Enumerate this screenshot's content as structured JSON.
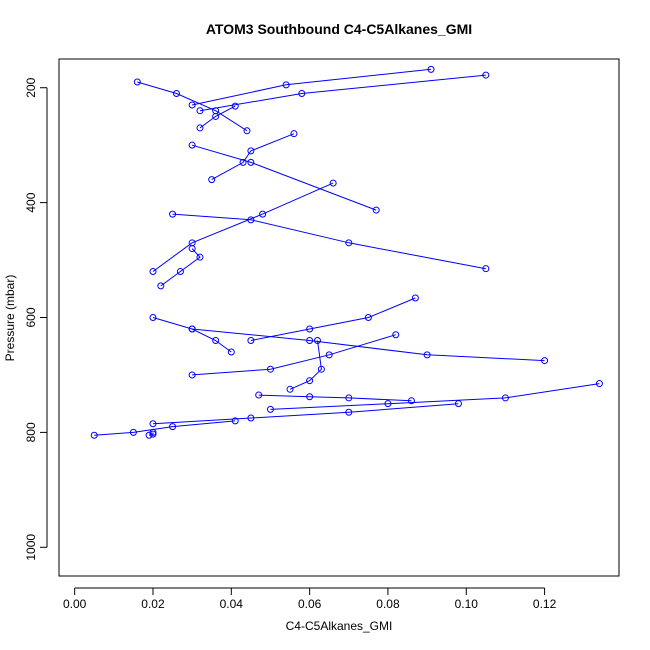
{
  "chart_data": {
    "type": "line",
    "title": "ATOM3 Southbound C4-C5Alkanes_GMI",
    "xlabel": "C4-C5Alkanes_GMI",
    "ylabel": "Pressure (mbar)",
    "xlim": [
      -0.004,
      0.139
    ],
    "ylim": [
      1050,
      150
    ],
    "y_reversed": true,
    "x_ticks": [
      "0.00",
      "0.02",
      "0.04",
      "0.06",
      "0.08",
      "0.10",
      "0.12"
    ],
    "x_tick_values": [
      0,
      0.02,
      0.04,
      0.06,
      0.08,
      0.1,
      0.12
    ],
    "y_ticks": [
      "200",
      "400",
      "600",
      "800",
      "1000"
    ],
    "y_tick_values": [
      200,
      400,
      600,
      800,
      1000
    ],
    "grid": false,
    "legend": "none",
    "series_color": "#0000ff",
    "series": [
      {
        "x": [
          0.105,
          0.058,
          0.032
        ],
        "y": [
          178,
          210,
          240
        ]
      },
      {
        "x": [
          0.091,
          0.054,
          0.03
        ],
        "y": [
          168,
          195,
          230
        ]
      },
      {
        "x": [
          0.056,
          0.045,
          0.043,
          0.035
        ],
        "y": [
          280,
          310,
          330,
          360
        ]
      },
      {
        "x": [
          0.066,
          0.048,
          0.03,
          0.02
        ],
        "y": [
          366,
          420,
          470,
          520
        ]
      },
      {
        "x": [
          0.077,
          0.045,
          0.03
        ],
        "y": [
          413,
          330,
          300
        ]
      },
      {
        "x": [
          0.105,
          0.07,
          0.045,
          0.025
        ],
        "y": [
          515,
          470,
          430,
          420
        ]
      },
      {
        "x": [
          0.087,
          0.075,
          0.06,
          0.045
        ],
        "y": [
          566,
          600,
          620,
          640
        ]
      },
      {
        "x": [
          0.082,
          0.065,
          0.05,
          0.03
        ],
        "y": [
          630,
          665,
          690,
          700
        ]
      },
      {
        "x": [
          0.12,
          0.09,
          0.06,
          0.03
        ],
        "y": [
          675,
          665,
          640,
          620
        ]
      },
      {
        "x": [
          0.134,
          0.11,
          0.08,
          0.05
        ],
        "y": [
          715,
          740,
          750,
          760
        ]
      },
      {
        "x": [
          0.098,
          0.07,
          0.045,
          0.02
        ],
        "y": [
          750,
          765,
          775,
          785
        ]
      },
      {
        "x": [
          0.086,
          0.07,
          0.06,
          0.047
        ],
        "y": [
          745,
          740,
          738,
          735
        ]
      },
      {
        "x": [
          0.041,
          0.025,
          0.015,
          0.005
        ],
        "y": [
          780,
          790,
          800,
          805
        ]
      },
      {
        "x": [
          0.044,
          0.036,
          0.026,
          0.016
        ],
        "y": [
          275,
          240,
          210,
          190
        ]
      },
      {
        "x": [
          0.041,
          0.036,
          0.032
        ],
        "y": [
          232,
          250,
          270
        ]
      },
      {
        "x": [
          0.062,
          0.063,
          0.06,
          0.055
        ],
        "y": [
          640,
          690,
          710,
          725
        ]
      },
      {
        "x": [
          0.02,
          0.03,
          0.036,
          0.04
        ],
        "y": [
          600,
          620,
          640,
          660
        ]
      },
      {
        "x": [
          0.03,
          0.032,
          0.027,
          0.022
        ],
        "y": [
          480,
          495,
          520,
          545
        ]
      },
      {
        "x": [
          0.02,
          0.02,
          0.019
        ],
        "y": [
          800,
          803,
          805
        ]
      }
    ]
  }
}
